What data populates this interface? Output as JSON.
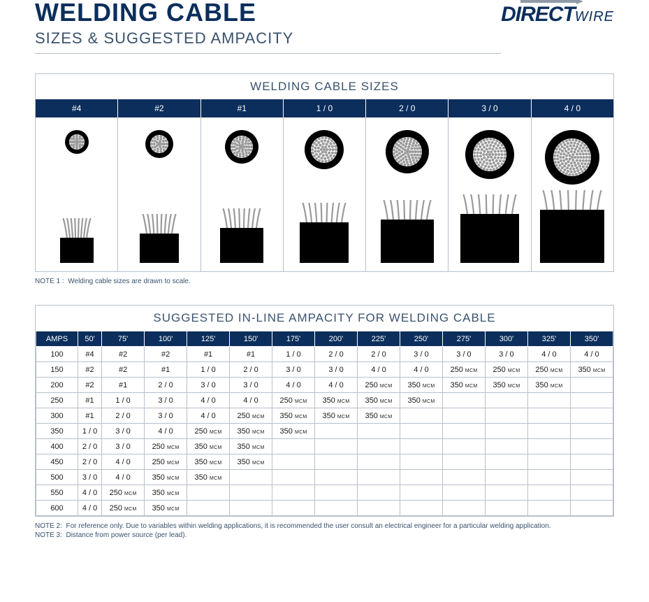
{
  "colors": {
    "brand_dark": "#0b2e5c",
    "brand_mid": "#3a526e",
    "rule": "#b7c0cb",
    "bg": "#ffffff",
    "strand": "#9a9a9a",
    "black": "#000000",
    "arrow": "#8f9aa6"
  },
  "header": {
    "title": "WELDING CABLE",
    "subtitle": "SIZES & SUGGESTED AMPACITY",
    "logo_direct": "DIRECT",
    "logo_wire": "WIRE"
  },
  "sizes_panel": {
    "title": "WELDING CABLE SIZES",
    "sizes": [
      {
        "label": "#4",
        "xsec_outer": 34,
        "xsec_ring": 6,
        "strand_rows": 3,
        "side_w": 48,
        "side_h": 36
      },
      {
        "label": "#2",
        "xsec_outer": 40,
        "xsec_ring": 7,
        "strand_rows": 3,
        "side_w": 56,
        "side_h": 42
      },
      {
        "label": "#1",
        "xsec_outer": 48,
        "xsec_ring": 8,
        "strand_rows": 4,
        "side_w": 62,
        "side_h": 50
      },
      {
        "label": "1 / 0",
        "xsec_outer": 56,
        "xsec_ring": 9,
        "strand_rows": 4,
        "side_w": 70,
        "side_h": 58
      },
      {
        "label": "2 / 0",
        "xsec_outer": 62,
        "xsec_ring": 10,
        "strand_rows": 5,
        "side_w": 76,
        "side_h": 62
      },
      {
        "label": "3 / 0",
        "xsec_outer": 70,
        "xsec_ring": 11,
        "strand_rows": 5,
        "side_w": 84,
        "side_h": 70
      },
      {
        "label": "4 / 0",
        "xsec_outer": 78,
        "xsec_ring": 12,
        "strand_rows": 6,
        "side_w": 92,
        "side_h": 76
      }
    ],
    "note1_label": "NOTE 1 :",
    "note1_text": "Welding cable sizes are drawn to scale."
  },
  "amp_panel": {
    "title": "SUGGESTED IN-LINE AMPACITY FOR WELDING CABLE",
    "col_amps": "AMPS",
    "distances": [
      "50'",
      "75'",
      "100'",
      "125'",
      "150'",
      "175'",
      "200'",
      "225'",
      "250'",
      "275'",
      "300'",
      "325'",
      "350'"
    ],
    "rows": [
      {
        "amps": "100",
        "cells": [
          "#4",
          "#2",
          "#2",
          "#1",
          "#1",
          "1 / 0",
          "2 / 0",
          "2 / 0",
          "3 / 0",
          "3 / 0",
          "3 / 0",
          "4 / 0",
          "4 / 0"
        ]
      },
      {
        "amps": "150",
        "cells": [
          "#2",
          "#2",
          "#1",
          "1 / 0",
          "2 / 0",
          "3 / 0",
          "3 / 0",
          "4 / 0",
          "4 / 0",
          "250 MCM",
          "250 MCM",
          "250 MCM",
          "350 MCM"
        ]
      },
      {
        "amps": "200",
        "cells": [
          "#2",
          "#1",
          "2 / 0",
          "3 / 0",
          "3 / 0",
          "4 / 0",
          "4 / 0",
          "250 MCM",
          "350 MCM",
          "350 MCM",
          "350 MCM",
          "350 MCM",
          ""
        ]
      },
      {
        "amps": "250",
        "cells": [
          "#1",
          "1 / 0",
          "3 / 0",
          "4 / 0",
          "4 / 0",
          "250 MCM",
          "350 MCM",
          "350 MCM",
          "350 MCM",
          "",
          "",
          "",
          ""
        ]
      },
      {
        "amps": "300",
        "cells": [
          "#1",
          "2 / 0",
          "3 / 0",
          "4 / 0",
          "250 MCM",
          "350 MCM",
          "350 MCM",
          "350 MCM",
          "",
          "",
          "",
          "",
          ""
        ]
      },
      {
        "amps": "350",
        "cells": [
          "1 / 0",
          "3 / 0",
          "4 / 0",
          "250 MCM",
          "350 MCM",
          "350 MCM",
          "",
          "",
          "",
          "",
          "",
          "",
          ""
        ]
      },
      {
        "amps": "400",
        "cells": [
          "2 / 0",
          "3 / 0",
          "250 MCM",
          "350 MCM",
          "350 MCM",
          "",
          "",
          "",
          "",
          "",
          "",
          "",
          ""
        ]
      },
      {
        "amps": "450",
        "cells": [
          "2 / 0",
          "4 / 0",
          "250 MCM",
          "350 MCM",
          "350 MCM",
          "",
          "",
          "",
          "",
          "",
          "",
          "",
          ""
        ]
      },
      {
        "amps": "500",
        "cells": [
          "3 / 0",
          "4 / 0",
          "350 MCM",
          "350 MCM",
          "",
          "",
          "",
          "",
          "",
          "",
          "",
          "",
          ""
        ]
      },
      {
        "amps": "550",
        "cells": [
          "4 / 0",
          "250 MCM",
          "350 MCM",
          "",
          "",
          "",
          "",
          "",
          "",
          "",
          "",
          "",
          ""
        ]
      },
      {
        "amps": "600",
        "cells": [
          "4 / 0",
          "250 MCM",
          "350 MCM",
          "",
          "",
          "",
          "",
          "",
          "",
          "",
          "",
          "",
          ""
        ]
      }
    ],
    "note2_label": "NOTE 2:",
    "note2_text": "For reference only. Due to variables within welding applications, it is recommended the user consult an electrical engineer for a particular welding application.",
    "note3_label": "NOTE 3:",
    "note3_text": "Distance from power source (per lead)."
  }
}
